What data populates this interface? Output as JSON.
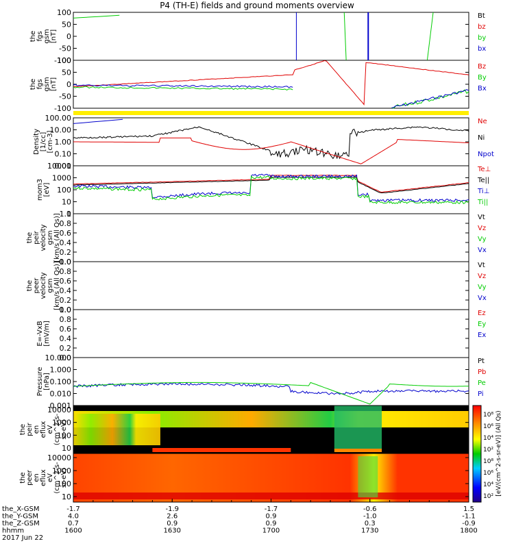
{
  "title": "P4 (TH-E) fields and ground moments overview",
  "colors": {
    "red": "#e00000",
    "green": "#00cc00",
    "blue": "#0000cc",
    "black": "#000000",
    "yellow": "#ffee00"
  },
  "chart_data": {
    "type": "line",
    "x": [
      "1600",
      "1630",
      "1700",
      "1730",
      "1800"
    ],
    "panels": [
      {
        "id": "fgs",
        "ylabel": [
          "the",
          "fgs",
          "gsm",
          "[nT]"
        ],
        "ticks": [
          "100",
          "50",
          "0",
          "-50",
          "-100"
        ],
        "legend": [
          {
            "label": "Bt",
            "color": "black"
          },
          {
            "label": "bz",
            "color": "red"
          },
          {
            "label": "by",
            "color": "green"
          },
          {
            "label": "bx",
            "color": "blue"
          }
        ]
      },
      {
        "id": "fgs-ref",
        "ylabel": [
          "the",
          "fgs",
          "gsm",
          "[nT]"
        ],
        "ticks": [
          "100",
          "50",
          "0",
          "-50",
          "-100"
        ],
        "legend": [
          {
            "label": "Bz",
            "color": "red"
          },
          {
            "label": "By",
            "color": "green"
          },
          {
            "label": "Bx",
            "color": "blue"
          }
        ]
      },
      {
        "id": "density",
        "ylabel": [
          "Density",
          "[1/cc]",
          "[cm-3]"
        ],
        "ticks": [
          "100.00",
          "10.00",
          "1.00",
          "0.10",
          "0.01"
        ],
        "legend": [
          {
            "label": "Ne",
            "color": "red"
          },
          {
            "label": "Ni",
            "color": "black"
          },
          {
            "label": "Npot",
            "color": "blue"
          }
        ]
      },
      {
        "id": "temperature",
        "ylabel": [
          "mom3",
          "[eV]"
        ],
        "ticks": [
          "10000",
          "1000",
          "100",
          "10",
          "1"
        ],
        "legend": [
          {
            "label": "Te⊥",
            "color": "red"
          },
          {
            "label": "Te||",
            "color": "black"
          },
          {
            "label": "Ti⊥",
            "color": "blue"
          },
          {
            "label": "Ti||",
            "color": "green"
          }
        ]
      },
      {
        "id": "peir-velocity",
        "ylabel": [
          "the",
          "peir",
          "velocity",
          "gsm",
          "[km/s (All Qs)]"
        ],
        "ticks": [
          "1.0",
          "0.8",
          "0.6",
          "0.4",
          "0.2",
          "0.0"
        ],
        "legend": [
          {
            "label": "Vt",
            "color": "black"
          },
          {
            "label": "Vz",
            "color": "red"
          },
          {
            "label": "Vy",
            "color": "green"
          },
          {
            "label": "Vx",
            "color": "blue"
          }
        ]
      },
      {
        "id": "peer-velocity",
        "ylabel": [
          "the",
          "peer",
          "velocity",
          "gsm",
          "[km/s (All Qs)]"
        ],
        "ticks": [
          "1.0",
          "0.8",
          "0.6",
          "0.4",
          "0.2",
          "0.0"
        ],
        "legend": [
          {
            "label": "Vt",
            "color": "black"
          },
          {
            "label": "Vz",
            "color": "red"
          },
          {
            "label": "Vy",
            "color": "green"
          },
          {
            "label": "Vx",
            "color": "blue"
          }
        ]
      },
      {
        "id": "efield",
        "ylabel": [
          "E=-VxB",
          "[mV/m]"
        ],
        "ticks": [
          "1.0",
          "0.8",
          "0.6",
          "0.4",
          "0.2",
          "0.0"
        ],
        "legend": [
          {
            "label": "Ez",
            "color": "red"
          },
          {
            "label": "Ey",
            "color": "green"
          },
          {
            "label": "Ex",
            "color": "blue"
          }
        ]
      },
      {
        "id": "pressure",
        "ylabel": [
          "Pressure",
          "[nPa]"
        ],
        "ticks": [
          "10.000",
          "1.000",
          "0.100",
          "0.010",
          "0.001"
        ],
        "legend": [
          {
            "label": "Pt",
            "color": "black"
          },
          {
            "label": "Pb",
            "color": "red"
          },
          {
            "label": "Pe",
            "color": "green"
          },
          {
            "label": "Pi",
            "color": "blue"
          }
        ]
      },
      {
        "id": "peir-spectrogram",
        "ylabel": [
          "the",
          "peir",
          "en",
          "eflux",
          "eV",
          "(cm^2-s-",
          "sr-eV)"
        ],
        "ticks": [
          "10000",
          "1000",
          "100",
          "10"
        ]
      },
      {
        "id": "peer-spectrogram",
        "ylabel": [
          "the",
          "peer",
          "en",
          "eflux",
          "eV",
          "(cm^2-s-",
          "sr-eV)"
        ],
        "ticks": [
          "10000",
          "1000",
          "100",
          "10"
        ]
      }
    ],
    "colorbar": {
      "ticks": [
        "10⁸",
        "10⁶",
        "10⁴",
        "10²",
        "10⁸",
        "10⁶",
        "10⁴",
        "10²"
      ],
      "label": "[eV/(cm^2-s-sr-eV)] (All Qs)"
    },
    "xaxis": {
      "row_labels": [
        "the_X-GSM",
        "the_Y-GSM",
        "the_Z-GSM",
        "hhmm",
        "2017 Jun 22"
      ],
      "columns": [
        [
          "-1.7",
          "4.0",
          "0.7",
          "1600"
        ],
        [
          "-1.9",
          "2.6",
          "0.9",
          "1630"
        ],
        [
          "-1.7",
          "0.9",
          "0.9",
          "1700"
        ],
        [
          "-0.6",
          "-1.0",
          "0.3",
          "1730"
        ],
        [
          "1.5",
          "-1.1",
          "-0.9",
          "1800"
        ]
      ]
    }
  }
}
